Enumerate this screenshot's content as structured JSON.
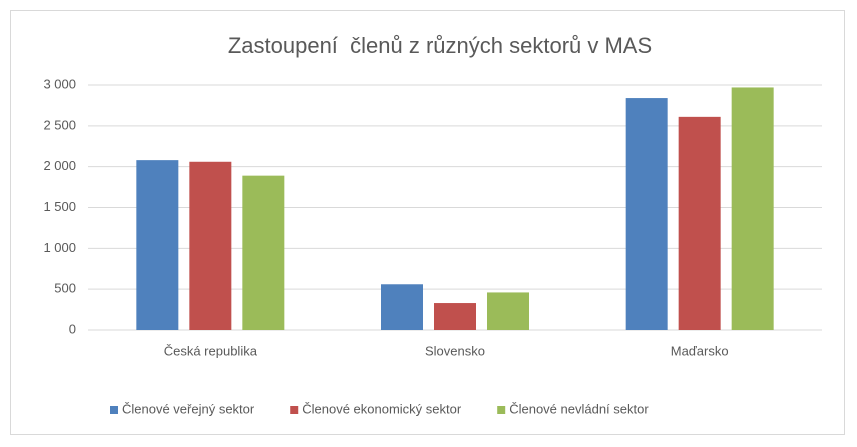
{
  "chart_data": {
    "type": "bar",
    "title": "Zastoupení  členů z různých sektorů v MAS",
    "categories": [
      "Česká republika",
      "Slovensko",
      "Maďarsko"
    ],
    "series": [
      {
        "name": "Členové veřejný sektor",
        "color": "#4f81bd",
        "values": [
          2080,
          560,
          2840
        ]
      },
      {
        "name": "Členové ekonomický sektor",
        "color": "#c0504d",
        "values": [
          2060,
          330,
          2610
        ]
      },
      {
        "name": "Členové nevládní sektor",
        "color": "#9bbb59",
        "values": [
          1890,
          460,
          2970
        ]
      }
    ],
    "ylim": [
      0,
      3000
    ],
    "yticks": [
      0,
      500,
      {
        "value": 1000,
        "label": "1 000"
      },
      {
        "value": 1500,
        "label": "1 500"
      },
      {
        "value": 2000,
        "label": "2 000"
      },
      {
        "value": 2500,
        "label": "2 500"
      },
      {
        "value": 3000,
        "label": "3 000"
      }
    ],
    "grid": true,
    "legend": "bottom"
  }
}
